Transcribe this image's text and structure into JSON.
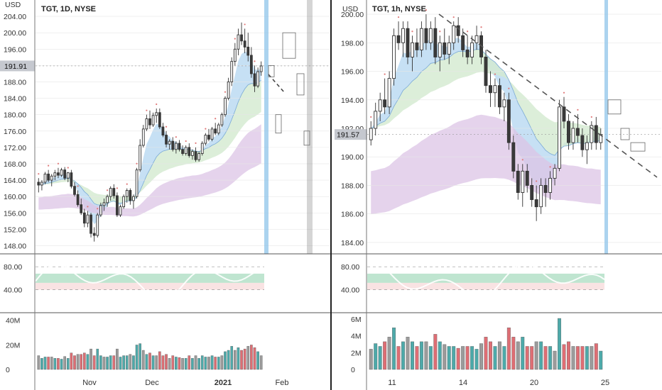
{
  "colors": {
    "up": "#2ea36a",
    "down": "#d94a4a",
    "hl": "#76b8e6",
    "cloud_blue": "#bcdaf2",
    "cloud_green": "#d3ead0",
    "cloud_purple": "#dcc4e6",
    "vol_red": "#d9555c",
    "vol_teal": "#2f9c9c",
    "vol_gray": "#8a8a8a"
  },
  "chart_data": [
    {
      "type": "candlestick",
      "title": "TGT, 1D, NYSE",
      "ylabel": "USD",
      "ylim": [
        146.0,
        208.0
      ],
      "y_ticks": [
        "148.00",
        "152.00",
        "156.00",
        "160.00",
        "164.00",
        "168.00",
        "172.00",
        "176.00",
        "180.00",
        "184.00",
        "188.00",
        "192.00",
        "196.00",
        "200.00",
        "204.00"
      ],
      "x_ticks": [
        "Nov",
        "Dec",
        "2021",
        "Feb"
      ],
      "last_price_label": "191.91",
      "candles": [
        [
          163.5,
          164.5,
          161.0,
          162.8
        ],
        [
          162.8,
          164.0,
          161.5,
          163.5
        ],
        [
          163.5,
          166.0,
          163.0,
          165.5
        ],
        [
          165.5,
          166.5,
          163.5,
          164.0
        ],
        [
          164.0,
          165.5,
          162.5,
          165.0
        ],
        [
          165.0,
          166.5,
          164.0,
          165.8
        ],
        [
          165.8,
          167.0,
          164.5,
          165.2
        ],
        [
          165.2,
          167.0,
          164.8,
          166.5
        ],
        [
          166.5,
          167.2,
          164.0,
          164.5
        ],
        [
          164.5,
          166.0,
          163.5,
          165.8
        ],
        [
          165.8,
          166.5,
          162.0,
          162.5
        ],
        [
          162.5,
          163.5,
          160.0,
          160.5
        ],
        [
          160.5,
          161.5,
          157.5,
          158.0
        ],
        [
          158.0,
          159.5,
          155.5,
          156.0
        ],
        [
          156.0,
          157.0,
          152.5,
          153.5
        ],
        [
          153.5,
          156.5,
          152.5,
          155.5
        ],
        [
          155.5,
          156.0,
          150.0,
          151.0
        ],
        [
          151.0,
          152.5,
          149.0,
          150.5
        ],
        [
          150.5,
          156.0,
          150.0,
          155.5
        ],
        [
          155.5,
          158.5,
          155.0,
          157.8
        ],
        [
          157.8,
          159.5,
          156.5,
          158.5
        ],
        [
          158.5,
          160.5,
          157.5,
          160.0
        ],
        [
          160.0,
          162.5,
          159.0,
          162.0
        ],
        [
          162.0,
          163.0,
          159.5,
          160.2
        ],
        [
          160.2,
          161.0,
          155.0,
          155.5
        ],
        [
          155.5,
          158.0,
          155.0,
          157.5
        ],
        [
          157.5,
          160.5,
          157.0,
          160.0
        ],
        [
          160.0,
          162.0,
          158.5,
          161.5
        ],
        [
          161.5,
          162.0,
          158.0,
          159.0
        ],
        [
          159.0,
          160.5,
          157.0,
          160.0
        ],
        [
          160.0,
          167.0,
          159.5,
          166.5
        ],
        [
          166.5,
          174.0,
          166.0,
          172.5
        ],
        [
          172.5,
          177.5,
          172.0,
          176.5
        ],
        [
          176.5,
          180.0,
          176.0,
          179.0
        ],
        [
          179.0,
          181.0,
          176.5,
          177.5
        ],
        [
          177.5,
          180.5,
          177.0,
          179.8
        ],
        [
          179.8,
          181.5,
          178.0,
          180.5
        ],
        [
          180.5,
          181.5,
          176.5,
          177.0
        ],
        [
          177.0,
          178.0,
          174.5,
          175.0
        ],
        [
          175.0,
          176.0,
          172.0,
          172.8
        ],
        [
          172.8,
          174.0,
          171.5,
          173.5
        ],
        [
          173.5,
          174.5,
          171.0,
          171.5
        ],
        [
          171.5,
          173.5,
          170.5,
          173.0
        ],
        [
          173.0,
          173.8,
          171.0,
          171.5
        ],
        [
          171.5,
          172.5,
          170.0,
          170.5
        ],
        [
          170.5,
          172.5,
          170.0,
          172.0
        ],
        [
          172.0,
          173.0,
          169.5,
          170.0
        ],
        [
          170.0,
          171.5,
          169.0,
          171.0
        ],
        [
          171.0,
          172.0,
          168.5,
          169.0
        ],
        [
          169.0,
          171.0,
          168.5,
          170.5
        ],
        [
          170.5,
          173.5,
          170.0,
          173.0
        ],
        [
          173.0,
          175.5,
          172.5,
          175.0
        ],
        [
          175.0,
          176.5,
          173.5,
          174.0
        ],
        [
          174.0,
          177.0,
          173.5,
          176.5
        ],
        [
          176.5,
          178.0,
          175.0,
          175.5
        ],
        [
          175.5,
          178.0,
          175.0,
          177.5
        ],
        [
          177.5,
          180.5,
          177.0,
          180.0
        ],
        [
          180.0,
          184.5,
          179.5,
          184.0
        ],
        [
          184.0,
          189.0,
          183.5,
          188.0
        ],
        [
          188.0,
          194.0,
          187.0,
          193.0
        ],
        [
          193.0,
          197.5,
          192.0,
          196.0
        ],
        [
          196.0,
          201.0,
          194.5,
          199.5
        ],
        [
          199.5,
          202.5,
          197.0,
          198.0
        ],
        [
          198.0,
          201.0,
          195.0,
          196.5
        ],
        [
          196.5,
          200.0,
          193.0,
          194.5
        ],
        [
          194.5,
          196.5,
          189.0,
          190.0
        ],
        [
          190.0,
          192.0,
          185.5,
          187.0
        ],
        [
          187.0,
          191.5,
          186.5,
          190.5
        ],
        [
          190.5,
          193.0,
          189.5,
          191.9
        ]
      ]
    },
    {
      "type": "candlestick",
      "title": "TGT, 1h, NYSE",
      "ylabel": "USD",
      "ylim": [
        183.2,
        201.0
      ],
      "y_ticks": [
        "184.00",
        "186.00",
        "188.00",
        "190.00",
        "192.00",
        "194.00",
        "196.00",
        "198.00",
        "200.00"
      ],
      "x_ticks": [
        "11",
        "14",
        "20",
        "25"
      ],
      "last_price_label": "191.57",
      "candles": [
        [
          191.2,
          192.5,
          190.8,
          192.0
        ],
        [
          192.0,
          193.8,
          191.5,
          193.2
        ],
        [
          193.2,
          194.5,
          192.5,
          194.0
        ],
        [
          194.0,
          195.5,
          193.0,
          193.5
        ],
        [
          193.5,
          196.0,
          193.0,
          195.5
        ],
        [
          195.5,
          199.0,
          195.0,
          198.5
        ],
        [
          198.5,
          199.5,
          197.5,
          198.0
        ],
        [
          198.0,
          199.5,
          197.0,
          199.0
        ],
        [
          199.0,
          199.5,
          196.5,
          197.0
        ],
        [
          197.0,
          198.5,
          196.0,
          198.0
        ],
        [
          198.0,
          199.0,
          197.0,
          197.5
        ],
        [
          197.5,
          199.5,
          197.0,
          199.0
        ],
        [
          199.0,
          200.0,
          197.5,
          198.0
        ],
        [
          198.0,
          199.5,
          197.5,
          199.0
        ],
        [
          199.0,
          199.8,
          196.5,
          197.0
        ],
        [
          197.0,
          198.5,
          196.0,
          198.0
        ],
        [
          198.0,
          199.0,
          196.8,
          197.2
        ],
        [
          197.2,
          198.5,
          196.5,
          198.0
        ],
        [
          198.0,
          199.5,
          197.5,
          199.2
        ],
        [
          199.2,
          199.8,
          198.0,
          198.5
        ],
        [
          198.5,
          199.0,
          197.0,
          197.5
        ],
        [
          197.5,
          198.5,
          196.5,
          197.0
        ],
        [
          197.0,
          198.5,
          196.5,
          198.0
        ],
        [
          198.0,
          199.2,
          197.5,
          198.5
        ],
        [
          198.5,
          198.8,
          196.5,
          197.0
        ],
        [
          197.0,
          197.5,
          194.5,
          195.0
        ],
        [
          195.0,
          196.0,
          193.5,
          194.5
        ],
        [
          194.5,
          195.5,
          193.5,
          195.0
        ],
        [
          195.0,
          195.5,
          193.0,
          193.5
        ],
        [
          193.5,
          194.5,
          192.5,
          194.0
        ],
        [
          194.0,
          194.5,
          190.5,
          191.0
        ],
        [
          191.0,
          191.5,
          188.5,
          189.0
        ],
        [
          189.0,
          189.5,
          187.0,
          187.5
        ],
        [
          187.5,
          189.5,
          186.5,
          189.0
        ],
        [
          189.0,
          189.5,
          187.5,
          188.0
        ],
        [
          188.0,
          188.5,
          186.5,
          187.0
        ],
        [
          187.0,
          188.0,
          185.5,
          186.5
        ],
        [
          186.5,
          188.5,
          186.0,
          188.0
        ],
        [
          188.0,
          188.5,
          186.5,
          187.5
        ],
        [
          187.5,
          189.0,
          187.0,
          188.5
        ],
        [
          188.5,
          189.5,
          188.0,
          189.2
        ],
        [
          189.2,
          194.0,
          189.0,
          193.5
        ],
        [
          193.5,
          194.2,
          192.0,
          192.5
        ],
        [
          192.5,
          193.0,
          190.5,
          191.0
        ],
        [
          191.0,
          192.5,
          190.5,
          192.0
        ],
        [
          192.0,
          193.0,
          191.0,
          191.5
        ],
        [
          191.5,
          192.0,
          190.0,
          190.5
        ],
        [
          190.5,
          191.5,
          189.5,
          191.0
        ],
        [
          191.0,
          192.5,
          190.5,
          192.2
        ],
        [
          192.2,
          192.8,
          190.5,
          191.0
        ],
        [
          191.0,
          192.0,
          190.5,
          191.57
        ]
      ]
    }
  ],
  "oscillator": {
    "ticks": [
      "40.00",
      "80.00"
    ],
    "ylim": [
      0,
      100
    ]
  },
  "volume": {
    "left": {
      "ticks": [
        "0",
        "20M",
        "40M"
      ],
      "ylim": [
        0,
        45
      ]
    },
    "right": {
      "ticks": [
        "0",
        "2M",
        "4M",
        "6M"
      ],
      "ylim": [
        0,
        6.6
      ]
    }
  }
}
